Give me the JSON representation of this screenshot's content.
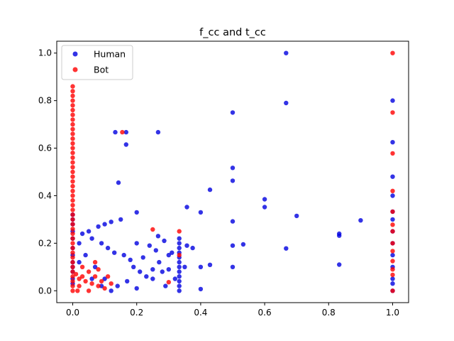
{
  "chart_data": {
    "type": "scatter",
    "title": "f_cc and t_cc",
    "xlabel": "",
    "ylabel": "",
    "xlim": [
      -0.05,
      1.05
    ],
    "ylim": [
      -0.05,
      1.05
    ],
    "xticks": [
      "0.0",
      "0.2",
      "0.4",
      "0.6",
      "0.8",
      "1.0"
    ],
    "yticks": [
      "0.0",
      "0.2",
      "0.4",
      "0.6",
      "0.8",
      "1.0"
    ],
    "grid": false,
    "legend_position": "upper-left",
    "series": [
      {
        "name": "Human",
        "color": "#0000e0",
        "alpha": 0.8,
        "points": [
          [
            0.667,
            1.0
          ],
          [
            0.5,
            0.75
          ],
          [
            0.667,
            0.79
          ],
          [
            0.133,
            0.667
          ],
          [
            0.167,
            0.667
          ],
          [
            0.267,
            0.667
          ],
          [
            0.167,
            0.615
          ],
          [
            0.143,
            0.455
          ],
          [
            0.5,
            0.517
          ],
          [
            0.5,
            0.463
          ],
          [
            0.429,
            0.425
          ],
          [
            0.6,
            0.385
          ],
          [
            0.6,
            0.352
          ],
          [
            0.357,
            0.352
          ],
          [
            0.4,
            0.33
          ],
          [
            0.7,
            0.315
          ],
          [
            0.2,
            0.33
          ],
          [
            0.9,
            0.296
          ],
          [
            0.5,
            0.292
          ],
          [
            0.833,
            0.24
          ],
          [
            0.833,
            0.232
          ],
          [
            0.533,
            0.195
          ],
          [
            0.5,
            0.19
          ],
          [
            0.667,
            0.178
          ],
          [
            0.833,
            0.11
          ],
          [
            0.5,
            0.1
          ],
          [
            0.4,
            0.1
          ],
          [
            0.429,
            0.109
          ],
          [
            0.4,
            0.007
          ],
          [
            0.267,
            0.23
          ],
          [
            0.286,
            0.21
          ],
          [
            0.357,
            0.19
          ],
          [
            0.375,
            0.18
          ],
          [
            0.3,
            0.15
          ],
          [
            0.35,
            0.1
          ],
          [
            0.28,
            0.08
          ],
          [
            0.25,
            0.05
          ],
          [
            0.22,
            0.14
          ],
          [
            0.2,
            0.2
          ],
          [
            0.15,
            0.3
          ],
          [
            0.12,
            0.29
          ],
          [
            0.1,
            0.28
          ],
          [
            0.08,
            0.27
          ],
          [
            0.05,
            0.25
          ],
          [
            0.03,
            0.24
          ],
          [
            0.02,
            0.2
          ],
          [
            0.06,
            0.22
          ],
          [
            0.09,
            0.2
          ],
          [
            0.11,
            0.18
          ],
          [
            0.13,
            0.16
          ],
          [
            0.16,
            0.15
          ],
          [
            0.18,
            0.13
          ],
          [
            0.19,
            0.1
          ],
          [
            0.21,
            0.08
          ],
          [
            0.23,
            0.06
          ],
          [
            0.17,
            0.04
          ],
          [
            0.14,
            0.02
          ],
          [
            0.12,
            0.0
          ],
          [
            0.1,
            0.05
          ],
          [
            0.07,
            0.1
          ],
          [
            0.04,
            0.15
          ],
          [
            0.02,
            0.12
          ],
          [
            0.06,
            0.05
          ],
          [
            0.09,
            0.02
          ],
          [
            0.2,
            0.01
          ],
          [
            0.25,
            0.09
          ],
          [
            0.27,
            0.12
          ],
          [
            0.3,
            0.09
          ],
          [
            0.32,
            0.05
          ],
          [
            0.29,
            0.02
          ],
          [
            0.31,
            0.16
          ],
          [
            0.26,
            0.17
          ],
          [
            0.24,
            0.19
          ],
          [
            0.333,
            0.0
          ],
          [
            0.333,
            0.02
          ],
          [
            0.333,
            0.04
          ],
          [
            0.333,
            0.06
          ],
          [
            0.333,
            0.08
          ],
          [
            0.333,
            0.1
          ],
          [
            0.333,
            0.12
          ],
          [
            0.333,
            0.14
          ],
          [
            0.333,
            0.16
          ],
          [
            0.333,
            0.18
          ],
          [
            0.333,
            0.2
          ],
          [
            0.333,
            0.22
          ],
          [
            0.0,
            0.3
          ],
          [
            0.0,
            0.32
          ],
          [
            0.0,
            0.28
          ],
          [
            0.0,
            0.25
          ],
          [
            0.0,
            0.22
          ],
          [
            0.0,
            0.18
          ],
          [
            0.0,
            0.15
          ],
          [
            0.0,
            0.12
          ],
          [
            0.0,
            0.1
          ],
          [
            0.0,
            0.08
          ],
          [
            0.0,
            0.05
          ],
          [
            0.0,
            0.03
          ],
          [
            1.0,
            0.8
          ],
          [
            1.0,
            0.625
          ],
          [
            1.0,
            0.48
          ],
          [
            1.0,
            0.4
          ],
          [
            1.0,
            0.333
          ],
          [
            1.0,
            0.3
          ],
          [
            1.0,
            0.25
          ],
          [
            1.0,
            0.2
          ],
          [
            1.0,
            0.15
          ],
          [
            1.0,
            0.1
          ],
          [
            1.0,
            0.05
          ],
          [
            1.0,
            0.03
          ],
          [
            1.0,
            0.0
          ]
        ]
      },
      {
        "name": "Bot",
        "color": "#ff0000",
        "alpha": 0.8,
        "points": [
          [
            0.0,
            0.86
          ],
          [
            0.0,
            0.84
          ],
          [
            0.0,
            0.82
          ],
          [
            0.0,
            0.8
          ],
          [
            0.0,
            0.78
          ],
          [
            0.0,
            0.76
          ],
          [
            0.0,
            0.74
          ],
          [
            0.0,
            0.72
          ],
          [
            0.0,
            0.7
          ],
          [
            0.0,
            0.68
          ],
          [
            0.0,
            0.66
          ],
          [
            0.0,
            0.64
          ],
          [
            0.0,
            0.62
          ],
          [
            0.0,
            0.6
          ],
          [
            0.0,
            0.58
          ],
          [
            0.0,
            0.56
          ],
          [
            0.0,
            0.54
          ],
          [
            0.0,
            0.52
          ],
          [
            0.0,
            0.5
          ],
          [
            0.0,
            0.48
          ],
          [
            0.0,
            0.46
          ],
          [
            0.0,
            0.44
          ],
          [
            0.0,
            0.42
          ],
          [
            0.0,
            0.4
          ],
          [
            0.0,
            0.38
          ],
          [
            0.0,
            0.36
          ],
          [
            0.0,
            0.34
          ],
          [
            0.0,
            0.32
          ],
          [
            0.0,
            0.3
          ],
          [
            0.0,
            0.28
          ],
          [
            0.0,
            0.26
          ],
          [
            0.0,
            0.24
          ],
          [
            0.0,
            0.22
          ],
          [
            0.0,
            0.2
          ],
          [
            0.0,
            0.18
          ],
          [
            0.0,
            0.16
          ],
          [
            0.0,
            0.14
          ],
          [
            0.0,
            0.12
          ],
          [
            0.0,
            0.1
          ],
          [
            0.0,
            0.08
          ],
          [
            0.0,
            0.06
          ],
          [
            0.0,
            0.04
          ],
          [
            0.0,
            0.02
          ],
          [
            0.0,
            0.0
          ],
          [
            0.155,
            0.667
          ],
          [
            0.25,
            0.258
          ],
          [
            0.333,
            0.25
          ],
          [
            0.333,
            0.15
          ],
          [
            0.3,
            0.036
          ],
          [
            0.07,
            0.12
          ],
          [
            0.08,
            0.09
          ],
          [
            0.05,
            0.08
          ],
          [
            0.03,
            0.06
          ],
          [
            0.02,
            0.05
          ],
          [
            0.04,
            0.04
          ],
          [
            0.06,
            0.03
          ],
          [
            0.08,
            0.02
          ],
          [
            0.1,
            0.01
          ],
          [
            0.02,
            0.02
          ],
          [
            0.01,
            0.07
          ],
          [
            0.03,
            0.1
          ],
          [
            0.05,
            0.0
          ],
          [
            0.07,
            0.06
          ],
          [
            0.09,
            0.04
          ],
          [
            0.11,
            0.06
          ],
          [
            0.12,
            0.03
          ],
          [
            0.015,
            0.0
          ],
          [
            1.0,
            1.0
          ],
          [
            1.0,
            0.75
          ],
          [
            1.0,
            0.578
          ],
          [
            1.0,
            0.42
          ],
          [
            1.0,
            0.333
          ],
          [
            1.0,
            0.278
          ],
          [
            1.0,
            0.25
          ],
          [
            1.0,
            0.2
          ],
          [
            1.0,
            0.167
          ],
          [
            1.0,
            0.125
          ],
          [
            1.0,
            0.09
          ],
          [
            1.0,
            0.067
          ],
          [
            1.0,
            0.0
          ]
        ]
      }
    ]
  }
}
